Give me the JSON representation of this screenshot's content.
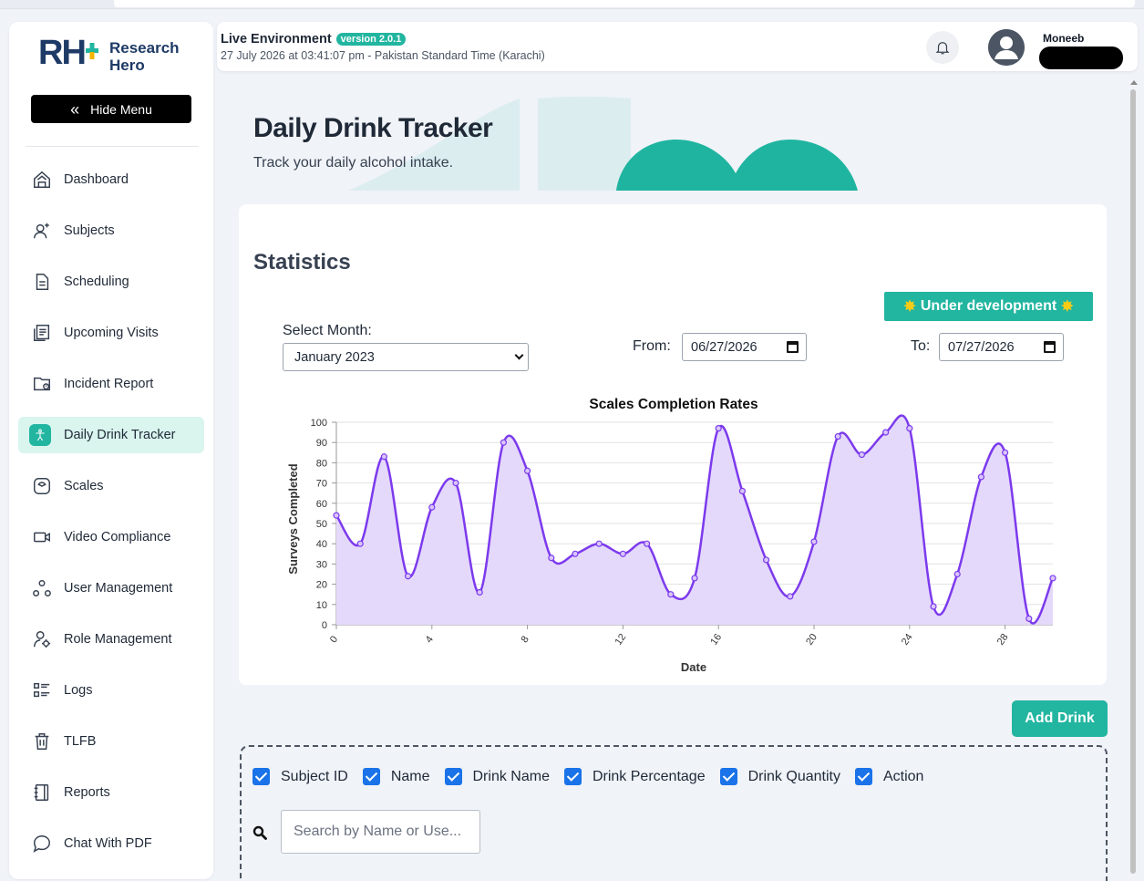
{
  "app": {
    "logo_mark": "RH",
    "logo_text_line1": "Research",
    "logo_text_line2": "Hero",
    "hide_menu_label": "Hide Menu"
  },
  "sidebar": {
    "items": [
      {
        "label": "Dashboard",
        "icon": "home-icon"
      },
      {
        "label": "Subjects",
        "icon": "user-plus-icon"
      },
      {
        "label": "Scheduling",
        "icon": "document-icon"
      },
      {
        "label": "Upcoming Visits",
        "icon": "list-document-icon"
      },
      {
        "label": "Incident Report",
        "icon": "folder-alert-icon"
      },
      {
        "label": "Daily Drink Tracker",
        "icon": "person-icon",
        "active": true
      },
      {
        "label": "Scales",
        "icon": "scale-icon"
      },
      {
        "label": "Video Compliance",
        "icon": "video-icon"
      },
      {
        "label": "User Management",
        "icon": "users-icon"
      },
      {
        "label": "Role Management",
        "icon": "user-gear-icon"
      },
      {
        "label": "Logs",
        "icon": "list-icon"
      },
      {
        "label": "TLFB",
        "icon": "trash-icon"
      },
      {
        "label": "Reports",
        "icon": "notebook-icon"
      },
      {
        "label": "Chat With PDF",
        "icon": "chat-icon"
      }
    ]
  },
  "header": {
    "env_title": "Live Environment",
    "version": "version 2.0.1",
    "datetime": "27 July 2026 at 03:41:07 pm - Pakistan Standard Time (Karachi)",
    "username": "Moneeb"
  },
  "page": {
    "title": "Daily Drink Tracker",
    "subtitle": "Track your daily alcohol intake."
  },
  "stats": {
    "title": "Statistics",
    "badge": "Under development",
    "badge_star": "✸",
    "month_label": "Select Month:",
    "month_value": "January 2023",
    "from_label": "From:",
    "from_value": "06/27/2026",
    "to_label": "To:",
    "to_value": "07/27/2026"
  },
  "chart_data": {
    "type": "area",
    "title": "Scales Completion Rates",
    "xlabel": "Date",
    "ylabel": "Surveys Completed",
    "x": [
      0,
      1,
      2,
      3,
      4,
      5,
      6,
      7,
      8,
      9,
      10,
      11,
      12,
      13,
      14,
      15,
      16,
      17,
      18,
      19,
      20,
      21,
      22,
      23,
      24,
      25,
      26,
      27,
      28,
      29,
      30
    ],
    "values": [
      54,
      40,
      83,
      24,
      58,
      70,
      16,
      90,
      76,
      33,
      35,
      40,
      35,
      40,
      15,
      23,
      97,
      66,
      32,
      14,
      41,
      93,
      84,
      95,
      97,
      9,
      25,
      73,
      85,
      3,
      23
    ],
    "xlim": [
      0,
      30
    ],
    "ylim": [
      0,
      100
    ],
    "xticks": [
      0,
      4,
      8,
      12,
      16,
      20,
      24,
      28
    ],
    "yticks": [
      0,
      10,
      20,
      30,
      40,
      50,
      60,
      70,
      80,
      90,
      100
    ],
    "grid": true,
    "line_color": "#7c3aed",
    "fill_color": "#e5d9fb"
  },
  "actions": {
    "add_drink": "Add Drink"
  },
  "table_controls": {
    "columns": [
      "Subject ID",
      "Name",
      "Drink Name",
      "Drink Percentage",
      "Drink Quantity",
      "Action"
    ],
    "search_placeholder": "Search by Name or Use..."
  },
  "colors": {
    "accent": "#22b5a0",
    "brand_navy": "#1e3a66",
    "checkbox": "#1a73e8"
  }
}
